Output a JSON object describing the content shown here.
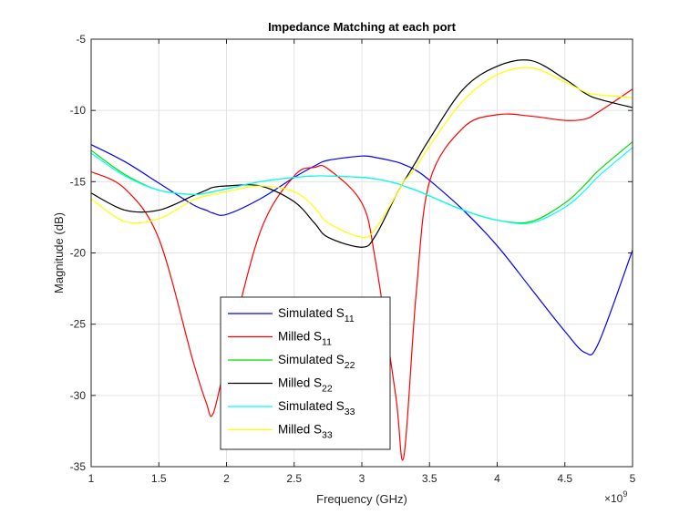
{
  "chart_data": {
    "type": "line",
    "title": "Impedance Matching at each port",
    "xlabel": "Frequency (GHz)",
    "ylabel": "Magnitude (dB)",
    "x_multiplier": "×10",
    "x_exponent": "9",
    "xlim": [
      1,
      5
    ],
    "ylim": [
      -35,
      -5
    ],
    "xticks": [
      "1",
      "1.5",
      "2",
      "2.5",
      "3",
      "3.5",
      "4",
      "4.5",
      "5"
    ],
    "yticks": [
      "-5",
      "-10",
      "-15",
      "-20",
      "-25",
      "-30",
      "-35"
    ],
    "grid": true,
    "legend_position": "lower-left-center",
    "x": [
      1.0,
      1.25,
      1.5,
      1.75,
      1.85,
      1.9,
      2.0,
      2.25,
      2.5,
      2.65,
      2.75,
      3.0,
      3.1,
      3.25,
      3.31,
      3.4,
      3.5,
      3.75,
      4.0,
      4.25,
      4.5,
      4.65,
      4.75,
      5.0
    ],
    "series": [
      {
        "name_main": "Simulated S",
        "name_sub": "11",
        "color": "#0000ff",
        "values": [
          -12.4,
          -13.6,
          -15.1,
          -16.6,
          -17.0,
          -17.2,
          -17.3,
          -16.2,
          -14.7,
          -13.9,
          -13.5,
          -13.2,
          -13.3,
          -13.6,
          -13.8,
          -14.2,
          -14.9,
          -17.0,
          -19.5,
          -22.5,
          -25.5,
          -27.0,
          -26.3,
          -19.8
        ]
      },
      {
        "name_main": "Milled S",
        "name_sub": "11",
        "color": "#ff0000",
        "values": [
          -14.3,
          -15.5,
          -19.0,
          -27.5,
          -30.5,
          -31.3,
          -27.5,
          -18.5,
          -14.6,
          -14.0,
          -14.1,
          -16.5,
          -20.5,
          -30.0,
          -34.3,
          -23.0,
          -15.0,
          -11.2,
          -10.3,
          -10.4,
          -10.7,
          -10.6,
          -10.1,
          -8.5
        ]
      },
      {
        "name_main": "Simulated S",
        "name_sub": "22",
        "color": "#00dd00",
        "values": [
          -12.8,
          -14.5,
          -15.6,
          -15.9,
          -15.8,
          -15.7,
          -15.5,
          -15.0,
          -14.7,
          -14.6,
          -14.6,
          -14.7,
          -14.8,
          -15.1,
          -15.3,
          -15.6,
          -16.0,
          -17.0,
          -17.7,
          -17.8,
          -16.5,
          -15.2,
          -14.2,
          -12.2
        ]
      },
      {
        "name_main": "Milled S",
        "name_sub": "22",
        "color": "#000000",
        "values": [
          -15.8,
          -17.0,
          -17.0,
          -16.0,
          -15.6,
          -15.4,
          -15.3,
          -15.3,
          -16.4,
          -17.9,
          -18.9,
          -19.6,
          -18.8,
          -16.0,
          -15.0,
          -13.6,
          -12.0,
          -8.5,
          -6.9,
          -6.5,
          -7.8,
          -8.8,
          -9.2,
          -9.8
        ]
      },
      {
        "name_main": "Simulated S",
        "name_sub": "33",
        "color": "#00ffff",
        "values": [
          -13.0,
          -14.6,
          -15.6,
          -15.9,
          -15.8,
          -15.7,
          -15.5,
          -15.0,
          -14.7,
          -14.6,
          -14.6,
          -14.7,
          -14.8,
          -15.1,
          -15.3,
          -15.6,
          -16.0,
          -17.0,
          -17.7,
          -17.9,
          -16.8,
          -15.6,
          -14.6,
          -12.6
        ]
      },
      {
        "name_main": "Milled S",
        "name_sub": "33",
        "color": "#ffff00",
        "values": [
          -16.2,
          -17.8,
          -17.6,
          -16.3,
          -16.0,
          -15.9,
          -15.7,
          -15.3,
          -15.7,
          -16.8,
          -17.9,
          -18.9,
          -18.3,
          -16.0,
          -15.0,
          -14.0,
          -12.5,
          -9.3,
          -7.5,
          -7.0,
          -8.0,
          -8.7,
          -8.9,
          -9.1
        ]
      }
    ]
  }
}
